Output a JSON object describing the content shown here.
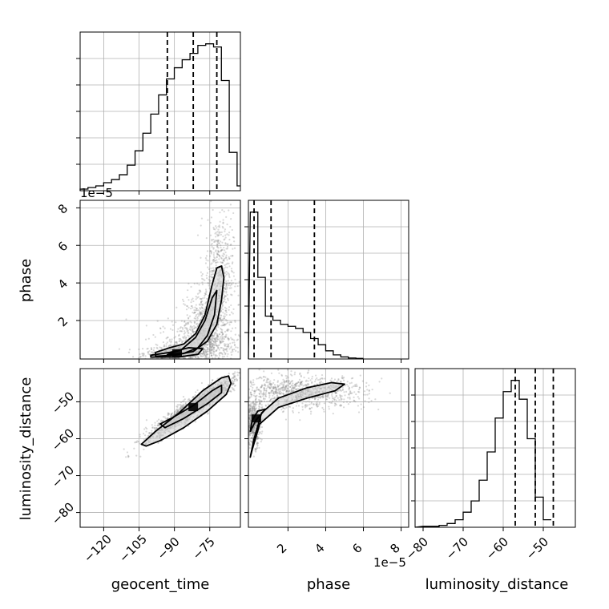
{
  "chart_data": {
    "type": "corner",
    "parameters": [
      "geocent_time",
      "phase",
      "luminosity_distance"
    ],
    "offset_label": "1e−5",
    "histograms": [
      {
        "name": "geocent_time",
        "bin_edges_start": -130,
        "bin_width": 3.33,
        "counts": [
          1,
          2,
          3,
          5,
          7,
          10,
          16,
          25,
          36,
          48,
          60,
          70,
          77,
          82,
          86,
          91,
          92,
          90,
          69,
          24,
          3
        ],
        "quantiles": [
          -93,
          -82,
          -72
        ],
        "xticks": [
          -120,
          -105,
          -90,
          -75
        ],
        "xlim": [
          -130,
          -62
        ],
        "xlabel": "geocent_time"
      },
      {
        "name": "phase",
        "bin_edges_start": 0,
        "bin_width": 0.4,
        "counts": [
          72,
          40,
          21,
          19,
          17,
          16,
          15,
          13,
          10,
          7,
          4,
          2,
          1,
          0.5,
          0.3
        ],
        "quantiles": [
          0.2,
          1.1,
          3.4
        ],
        "xticks": [
          2,
          4,
          6,
          8
        ],
        "xlim": [
          -0.1,
          8.4
        ],
        "xlabel": "phase"
      },
      {
        "name": "luminosity_distance",
        "bin_edges_start": -80,
        "bin_width": 2,
        "counts": [
          0.5,
          0.5,
          1,
          2,
          4,
          8,
          14,
          25,
          40,
          58,
          72,
          78,
          68,
          47,
          16,
          4
        ],
        "quantiles": [
          -57,
          -52,
          -47.5
        ],
        "xticks": [
          -80,
          -70,
          -60,
          -50
        ],
        "xlim": [
          -82,
          -42
        ],
        "xlabel": "luminosity_distance"
      }
    ],
    "scatter_panels": [
      {
        "x": "geocent_time",
        "y": "phase",
        "yticks": [
          2,
          4,
          6,
          8
        ],
        "ylim": [
          -0.05,
          8.4
        ],
        "ylabel": "phase",
        "contours": [
          [
            [
              -98,
              0.1
            ],
            [
              -90,
              0.15
            ],
            [
              -82,
              0.35
            ],
            [
              -76,
              0.9
            ],
            [
              -72,
              1.8
            ],
            [
              -70,
              3.1
            ],
            [
              -69,
              4.3
            ],
            [
              -70,
              4.9
            ],
            [
              -72,
              4.8
            ],
            [
              -74,
              3.9
            ],
            [
              -77,
              2.3
            ],
            [
              -81,
              1.3
            ],
            [
              -86,
              0.75
            ],
            [
              -92,
              0.55
            ],
            [
              -98,
              0.3
            ]
          ],
          [
            [
              -93,
              0.18
            ],
            [
              -86,
              0.25
            ],
            [
              -80,
              0.55
            ],
            [
              -76,
              1.2
            ],
            [
              -73,
              2.3
            ],
            [
              -72,
              3.6
            ],
            [
              -74,
              3.2
            ],
            [
              -77,
              2
            ],
            [
              -81,
              1.1
            ],
            [
              -87,
              0.45
            ]
          ],
          [
            [
              -100,
              0.05
            ],
            [
              -88,
              0.06
            ],
            [
              -80,
              0.2
            ],
            [
              -78,
              0.5
            ],
            [
              -84,
              0.55
            ],
            [
              -92,
              0.3
            ],
            [
              -100,
              0.15
            ]
          ]
        ],
        "density_clusters": [
          {
            "cx": -89,
            "cy": 0.25,
            "sx": 7,
            "sy": 0.2,
            "n": 500
          },
          {
            "cx": -76,
            "cy": 1.5,
            "sx": 5,
            "sy": 1.1,
            "n": 700
          },
          {
            "cx": -71,
            "cy": 4.5,
            "sx": 3,
            "sy": 1.6,
            "n": 500
          },
          {
            "cx": -80,
            "cy": 0.8,
            "sx": 9,
            "sy": 0.6,
            "n": 400
          }
        ]
      },
      {
        "x": "geocent_time",
        "y": "luminosity_distance",
        "yticks": [
          -80,
          -70,
          -60,
          -50
        ],
        "ylim": [
          -84,
          -41
        ],
        "ylabel": "luminosity_distance",
        "contours": [
          [
            [
              -104,
              -61.5
            ],
            [
              -98,
              -58
            ],
            [
              -88,
              -53
            ],
            [
              -78,
              -47
            ],
            [
              -70,
              -43.5
            ],
            [
              -67,
              -43
            ],
            [
              -66,
              -45
            ],
            [
              -68,
              -48
            ],
            [
              -76,
              -52.5
            ],
            [
              -86,
              -57
            ],
            [
              -96,
              -60.5
            ],
            [
              -102,
              -62
            ]
          ],
          [
            [
              -96,
              -56
            ],
            [
              -90,
              -54
            ],
            [
              -82,
              -51
            ],
            [
              -74,
              -47
            ],
            [
              -70,
              -45.5
            ],
            [
              -70,
              -47.5
            ],
            [
              -76,
              -50.5
            ],
            [
              -86,
              -54.5
            ],
            [
              -94,
              -57
            ]
          ]
        ],
        "density_clusters": [
          {
            "cx": -82,
            "cy": -51.5,
            "sx": 10,
            "sy": 4.5,
            "n": 1400,
            "corr": 0.95
          }
        ]
      },
      {
        "x": "phase",
        "y": "luminosity_distance",
        "yticks": [
          -80,
          -70,
          -60,
          -50
        ],
        "ylim": [
          -84,
          -41
        ],
        "ylabel": "",
        "contours": [
          [
            [
              0,
              -65
            ],
            [
              0.2,
              -60
            ],
            [
              0.6,
              -53
            ],
            [
              1.5,
              -49
            ],
            [
              3,
              -46.2
            ],
            [
              4.3,
              -44.8
            ],
            [
              5,
              -45.2
            ],
            [
              4.5,
              -47
            ],
            [
              3,
              -49
            ],
            [
              1.5,
              -51.5
            ],
            [
              0.5,
              -56
            ],
            [
              0.1,
              -63
            ]
          ],
          [
            [
              0,
              -58
            ],
            [
              0.3,
              -55
            ],
            [
              0.8,
              -52
            ],
            [
              0.4,
              -52.5
            ],
            [
              0.1,
              -55
            ]
          ]
        ],
        "density_clusters": [
          {
            "cx": 0.15,
            "cy": -56,
            "sx": 0.2,
            "sy": 3,
            "n": 500
          },
          {
            "cx": 2.5,
            "cy": -47.5,
            "sx": 1.8,
            "sy": 2.2,
            "n": 1000
          }
        ]
      }
    ]
  }
}
